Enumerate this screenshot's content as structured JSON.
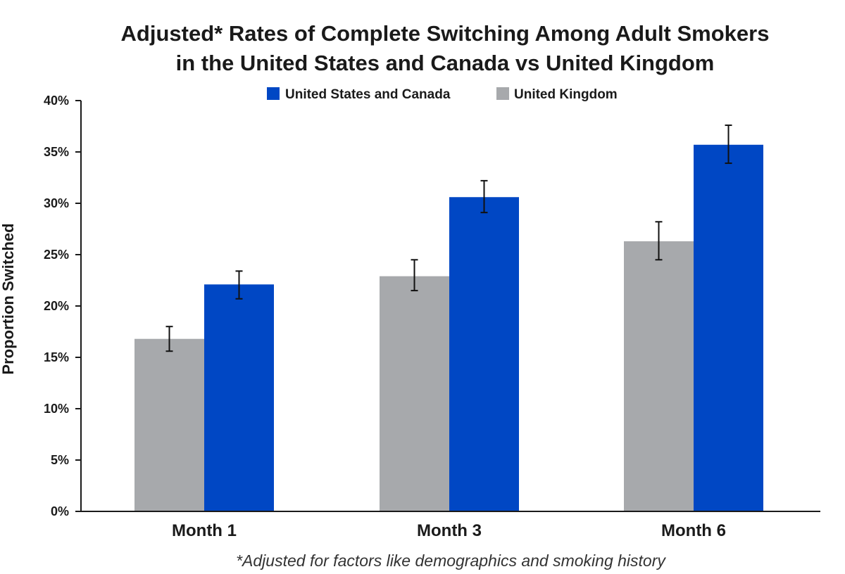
{
  "chart_data": {
    "type": "bar",
    "title_lines": [
      "Adjusted* Rates of Complete Switching Among Adult Smokers",
      "in the United States and Canada vs United Kingdom"
    ],
    "categories": [
      "Month 1",
      "Month 3",
      "Month 6"
    ],
    "series": [
      {
        "name": "United Kingdom",
        "color": "#a7a9ac",
        "values": [
          16.8,
          22.9,
          26.3
        ],
        "error_low": [
          15.6,
          21.5,
          24.5
        ],
        "error_high": [
          18.0,
          24.5,
          28.2
        ]
      },
      {
        "name": "United States and Canada",
        "color": "#0047c4",
        "values": [
          22.1,
          30.6,
          35.7
        ],
        "error_low": [
          20.7,
          29.1,
          33.9
        ],
        "error_high": [
          23.4,
          32.2,
          37.6
        ]
      }
    ],
    "legend_order": [
      "United States and Canada",
      "United Kingdom"
    ],
    "legend_position": "top-center",
    "ylabel": "Proportion Switched",
    "xlabel": "",
    "ylim": [
      0,
      40
    ],
    "yticks": [
      0,
      5,
      10,
      15,
      20,
      25,
      30,
      35,
      40
    ],
    "ytick_labels": [
      "0%",
      "5%",
      "10%",
      "15%",
      "20%",
      "25%",
      "30%",
      "35%",
      "40%"
    ],
    "grid": false,
    "footnote": "*Adjusted for factors like demographics and smoking history"
  }
}
